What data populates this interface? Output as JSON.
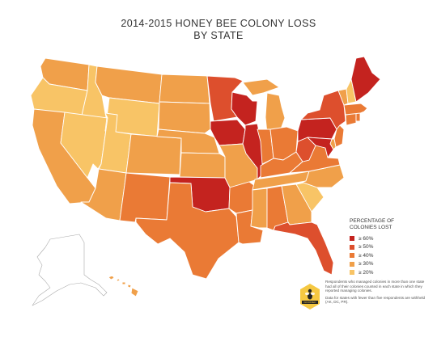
{
  "title": {
    "line1": "2014-2015 HONEY BEE COLONY LOSS",
    "line2": "BY STATE"
  },
  "legend": {
    "title_line1": "PERCENTAGE OF",
    "title_line2": "COLONIES LOST",
    "items": [
      {
        "label": "≥ 60%",
        "color": "#c4231f"
      },
      {
        "label": "≥ 50%",
        "color": "#dd4f2d"
      },
      {
        "label": "≥ 40%",
        "color": "#ea7a35"
      },
      {
        "label": "≥ 30%",
        "color": "#f0a04a"
      },
      {
        "label": "≥ 20%",
        "color": "#f8c466"
      }
    ]
  },
  "badge": {
    "text": "INFORMED",
    "color": "#f5c842"
  },
  "notes": {
    "line1": "Respondents who managed colonies in more than one state had all of their colonies counted in each state in which they reported managing colonies.",
    "line2": "Data for states with fewer than five respondents are withheld (AK, DC, PR)."
  },
  "map_data": {
    "no_data_color": "#ffffff",
    "states": [
      {
        "id": "WA",
        "level": 3
      },
      {
        "id": "OR",
        "level": 4
      },
      {
        "id": "CA",
        "level": 3
      },
      {
        "id": "ID",
        "level": 4
      },
      {
        "id": "NV",
        "level": 4
      },
      {
        "id": "MT",
        "level": 3
      },
      {
        "id": "WY",
        "level": 4
      },
      {
        "id": "UT",
        "level": 4
      },
      {
        "id": "AZ",
        "level": 3
      },
      {
        "id": "CO",
        "level": 3
      },
      {
        "id": "NM",
        "level": 2
      },
      {
        "id": "ND",
        "level": 3
      },
      {
        "id": "SD",
        "level": 3
      },
      {
        "id": "NE",
        "level": 3
      },
      {
        "id": "KS",
        "level": 3
      },
      {
        "id": "OK",
        "level": 0
      },
      {
        "id": "TX",
        "level": 2
      },
      {
        "id": "MN",
        "level": 1
      },
      {
        "id": "IA",
        "level": 0
      },
      {
        "id": "MO",
        "level": 3
      },
      {
        "id": "AR",
        "level": 2
      },
      {
        "id": "LA",
        "level": 2
      },
      {
        "id": "WI",
        "level": 0
      },
      {
        "id": "IL",
        "level": 0
      },
      {
        "id": "MI",
        "level": 3
      },
      {
        "id": "MI-UP",
        "level": 3
      },
      {
        "id": "IN",
        "level": 2
      },
      {
        "id": "OH",
        "level": 2
      },
      {
        "id": "KY",
        "level": 2
      },
      {
        "id": "TN",
        "level": 3
      },
      {
        "id": "MS",
        "level": 3
      },
      {
        "id": "AL",
        "level": 2
      },
      {
        "id": "GA",
        "level": 3
      },
      {
        "id": "FL",
        "level": 1
      },
      {
        "id": "SC",
        "level": 4
      },
      {
        "id": "NC",
        "level": 3
      },
      {
        "id": "VA",
        "level": 2
      },
      {
        "id": "WV",
        "level": 1
      },
      {
        "id": "PA",
        "level": 0
      },
      {
        "id": "NY",
        "level": 1
      },
      {
        "id": "NJ",
        "level": 2
      },
      {
        "id": "DE",
        "level": 3
      },
      {
        "id": "MD",
        "level": 0
      },
      {
        "id": "CT",
        "level": 2
      },
      {
        "id": "RI",
        "level": 2
      },
      {
        "id": "MA",
        "level": 2
      },
      {
        "id": "VT",
        "level": 3
      },
      {
        "id": "NH",
        "level": 4
      },
      {
        "id": "ME",
        "level": 0
      },
      {
        "id": "HI",
        "level": 3
      },
      {
        "id": "AK",
        "level": -1
      }
    ]
  }
}
